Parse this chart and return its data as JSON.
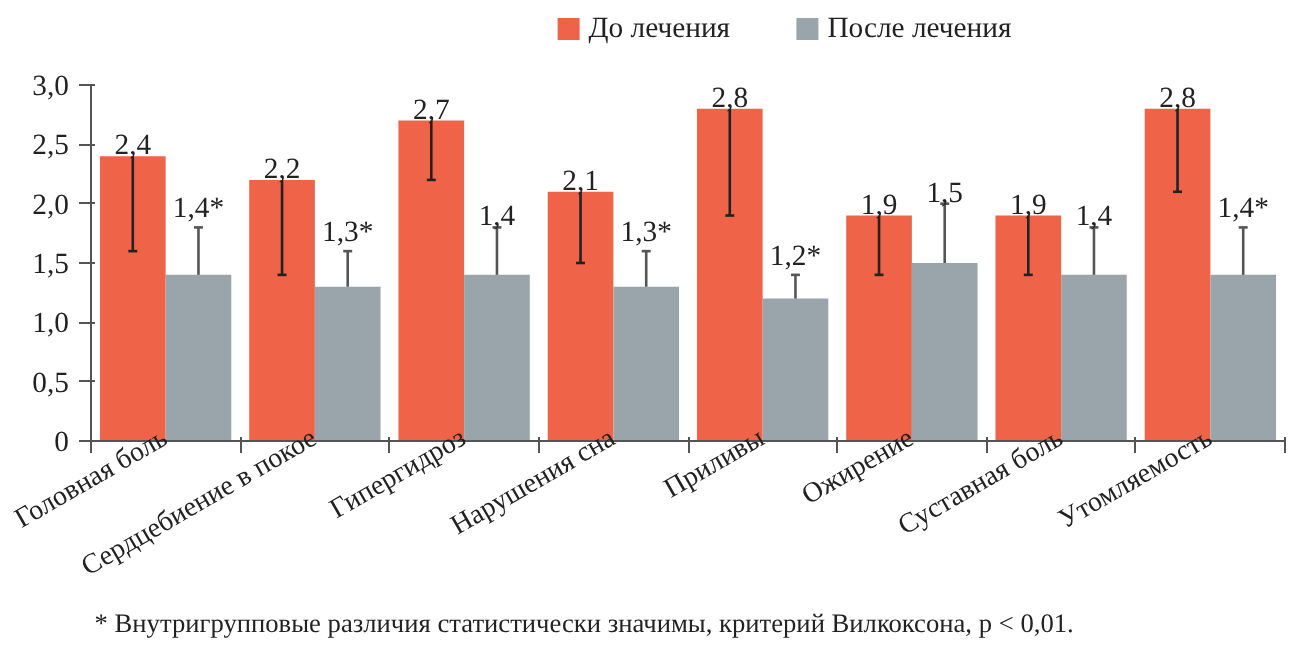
{
  "chart_data": {
    "type": "bar",
    "categories": [
      "Головная боль",
      "Сердцебиение в покое",
      "Гипергидроз",
      "Нарушения сна",
      "Приливы",
      "Ожирение",
      "Суставная боль",
      "Утомляемость"
    ],
    "series": [
      {
        "name": "До лечения",
        "color": "#ef6348",
        "values": [
          2.4,
          2.2,
          2.7,
          2.1,
          2.8,
          1.9,
          1.9,
          2.8
        ],
        "errors": [
          [
            1.6,
            2.4
          ],
          [
            1.4,
            2.2
          ],
          [
            2.2,
            2.7
          ],
          [
            1.5,
            2.1
          ],
          [
            1.9,
            2.8
          ],
          [
            1.4,
            1.9
          ],
          [
            1.4,
            1.9
          ],
          [
            2.1,
            2.8
          ]
        ],
        "value_labels": [
          "2,4",
          "2,2",
          "2,7",
          "2,1",
          "2,8",
          "1,9",
          "1,9",
          "2,8"
        ]
      },
      {
        "name": "После лечения",
        "color": "#9aa5ab",
        "values": [
          1.4,
          1.3,
          1.4,
          1.3,
          1.2,
          1.5,
          1.4,
          1.4
        ],
        "errors": [
          [
            1.4,
            1.8
          ],
          [
            1.3,
            1.6
          ],
          [
            1.4,
            1.8
          ],
          [
            1.3,
            1.6
          ],
          [
            1.2,
            1.4
          ],
          [
            1.5,
            2.0
          ],
          [
            1.4,
            1.8
          ],
          [
            1.4,
            1.8
          ]
        ],
        "value_labels": [
          "1,4*",
          "1,3*",
          "1,4",
          "1,3*",
          "1,2*",
          "1,5",
          "1,4",
          "1,4*"
        ]
      }
    ],
    "ylim": [
      0,
      3.0
    ],
    "yticks": [
      {
        "value": 0,
        "label": "0"
      },
      {
        "value": 0.5,
        "label": "0,5"
      },
      {
        "value": 1.0,
        "label": "1,0"
      },
      {
        "value": 1.5,
        "label": "1,5"
      },
      {
        "value": 2.0,
        "label": "2,0"
      },
      {
        "value": 2.5,
        "label": "2,5"
      },
      {
        "value": 3.0,
        "label": "3,0"
      }
    ],
    "grid": false,
    "legend": "top",
    "annotations": [
      "* Внутригрупповые различия статистически значимы, критерий Вилкоксона, p < 0,01."
    ]
  }
}
